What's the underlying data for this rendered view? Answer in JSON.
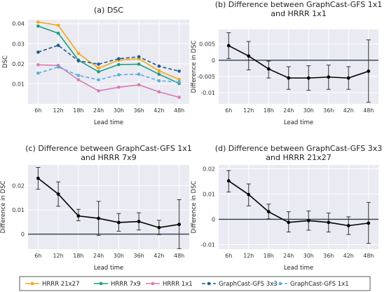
{
  "panels": [
    {
      "title_lines": [
        "(a) DSC"
      ],
      "xlabel": "Lead time",
      "ylabel": "DSC",
      "categories": [
        "6h",
        "12h",
        "18h",
        "24h",
        "30h",
        "36h",
        "42h",
        "48h"
      ],
      "ylim": [
        0.0,
        0.042
      ],
      "yticks": [
        0.01,
        0.02,
        0.03,
        0.04
      ],
      "ytick_labels": [
        "0.01",
        "0.02",
        "0.03",
        "0.04"
      ],
      "series": [
        {
          "key": "hrrr_21x27",
          "values": [
            0.0408,
            0.0392,
            0.0252,
            0.0178,
            0.0218,
            0.0225,
            0.0165,
            0.0122
          ]
        },
        {
          "key": "hrrr_7x9",
          "values": [
            0.0388,
            0.0352,
            0.0218,
            0.016,
            0.0196,
            0.0198,
            0.0148,
            0.0102
          ]
        },
        {
          "key": "hrrr_1x1",
          "values": [
            0.0195,
            0.0192,
            0.012,
            0.0065,
            0.0083,
            0.0095,
            0.006,
            0.0033
          ]
        },
        {
          "key": "graphcast_3x3",
          "values": [
            0.0258,
            0.0292,
            0.0215,
            0.0198,
            0.0225,
            0.0235,
            0.0188,
            0.0163
          ]
        },
        {
          "key": "graphcast_1x1",
          "values": [
            0.0153,
            0.0184,
            0.0142,
            0.012,
            0.0145,
            0.0148,
            0.0115,
            0.011
          ]
        }
      ]
    },
    {
      "title_lines": [
        "(b) Difference between GraphCast-GFS 1x1",
        "and HRRR 1x1"
      ],
      "xlabel": "Lead time",
      "ylabel": "Difference in DSC",
      "categories": [
        "6h",
        "12h",
        "18h",
        "24h",
        "30h",
        "36h",
        "42h",
        "48h"
      ],
      "ylim": [
        -0.0135,
        0.0095
      ],
      "yticks": [
        -0.01,
        -0.005,
        0.0,
        0.005
      ],
      "ytick_labels": [
        "-0.01",
        "-0.005",
        "0",
        "0.005"
      ],
      "zero_line": true,
      "values": [
        0.0045,
        0.0013,
        -0.0027,
        -0.0055,
        -0.0055,
        -0.0052,
        -0.0055,
        -0.0034
      ],
      "err_low": [
        0.0005,
        -0.003,
        -0.0055,
        -0.009,
        -0.0093,
        -0.009,
        -0.009,
        -0.013
      ],
      "err_high": [
        0.0085,
        0.0058,
        -0.0003,
        -0.002,
        -0.0017,
        -0.0015,
        -0.002,
        0.0063
      ]
    },
    {
      "title_lines": [
        "(c) Difference between GraphCast-GFS 1x1",
        "and HRRR 7x9"
      ],
      "xlabel": "Lead time",
      "ylabel": "Difference in DSC",
      "categories": [
        "6h",
        "12h",
        "18h",
        "24h",
        "30h",
        "36h",
        "42h",
        "48h"
      ],
      "ylim": [
        -0.0062,
        0.0285
      ],
      "yticks": [
        0.0,
        0.01,
        0.02
      ],
      "ytick_labels": [
        "0",
        "0.01",
        "0.02"
      ],
      "zero_line": true,
      "values": [
        0.023,
        0.0165,
        0.0075,
        0.0065,
        0.0048,
        0.0052,
        0.0027,
        0.004
      ],
      "err_low": [
        0.0185,
        0.0115,
        0.0055,
        -0.0005,
        0.0012,
        0.0017,
        -0.0002,
        -0.006
      ],
      "err_high": [
        0.0275,
        0.0215,
        0.0102,
        0.0135,
        0.0085,
        0.0088,
        0.0057,
        0.0142
      ]
    },
    {
      "title_lines": [
        "(d) Difference between GraphCast-GFS 3x3",
        "and HRRR 21x27"
      ],
      "xlabel": "Lead time",
      "ylabel": "Difference in DSC",
      "categories": [
        "6h",
        "12h",
        "18h",
        "24h",
        "30h",
        "36h",
        "42h",
        "48h"
      ],
      "ylim": [
        -0.0118,
        0.0215
      ],
      "yticks": [
        -0.01,
        0.0,
        0.01,
        0.02
      ],
      "ytick_labels": [
        "-0.01",
        "0",
        "0.01",
        "0.02"
      ],
      "zero_line": true,
      "values": [
        0.0152,
        0.0098,
        0.003,
        -0.0012,
        -0.0005,
        -0.0012,
        -0.0025,
        -0.0015
      ],
      "err_low": [
        0.0108,
        0.0053,
        0.0002,
        -0.005,
        -0.0043,
        -0.005,
        -0.006,
        -0.0095
      ],
      "err_high": [
        0.0193,
        0.014,
        0.006,
        0.003,
        0.0033,
        0.0025,
        0.001,
        0.0067
      ]
    }
  ],
  "legend": [
    {
      "key": "hrrr_21x27",
      "label": "HRRR 21x27",
      "color": "#f2a81d",
      "dash": "solid"
    },
    {
      "key": "hrrr_7x9",
      "label": "HRRR 7x9",
      "color": "#1a9e77",
      "dash": "solid"
    },
    {
      "key": "hrrr_1x1",
      "label": "HRRR 1x1",
      "color": "#d67bb1",
      "dash": "solid"
    },
    {
      "key": "graphcast_3x3",
      "label": "GraphCast-GFS 3x3",
      "color": "#1f5b8c",
      "dash": "dashed"
    },
    {
      "key": "graphcast_1x1",
      "label": "GraphCast-GFS 1x1",
      "color": "#5aade0",
      "dash": "dashed"
    }
  ],
  "colors": {
    "plot_bg": "#eaeaf2",
    "grid": "#ffffff",
    "zero_line": "#2d3e50",
    "diff_line": "#000000"
  },
  "chart_data": [
    {
      "type": "line",
      "title": "(a) DSC",
      "xlabel": "Lead time",
      "ylabel": "DSC",
      "categories": [
        "6h",
        "12h",
        "18h",
        "24h",
        "30h",
        "36h",
        "42h",
        "48h"
      ],
      "ylim": [
        0.0,
        0.042
      ],
      "series": [
        {
          "name": "HRRR 21x27",
          "values": [
            0.0408,
            0.0392,
            0.0252,
            0.0178,
            0.0218,
            0.0225,
            0.0165,
            0.0122
          ]
        },
        {
          "name": "HRRR 7x9",
          "values": [
            0.0388,
            0.0352,
            0.0218,
            0.016,
            0.0196,
            0.0198,
            0.0148,
            0.0102
          ]
        },
        {
          "name": "HRRR 1x1",
          "values": [
            0.0195,
            0.0192,
            0.012,
            0.0065,
            0.0083,
            0.0095,
            0.006,
            0.0033
          ]
        },
        {
          "name": "GraphCast-GFS 3x3",
          "values": [
            0.0258,
            0.0292,
            0.0215,
            0.0198,
            0.0225,
            0.0235,
            0.0188,
            0.0163
          ]
        },
        {
          "name": "GraphCast-GFS 1x1",
          "values": [
            0.0153,
            0.0184,
            0.0142,
            0.012,
            0.0145,
            0.0148,
            0.0115,
            0.011
          ]
        }
      ],
      "grid": true,
      "legend": "bottom"
    },
    {
      "type": "line",
      "title": "(b) Difference between GraphCast-GFS 1x1 and HRRR 1x1",
      "xlabel": "Lead time",
      "ylabel": "Difference in DSC",
      "categories": [
        "6h",
        "12h",
        "18h",
        "24h",
        "30h",
        "36h",
        "42h",
        "48h"
      ],
      "values": [
        0.0045,
        0.0013,
        -0.0027,
        -0.0055,
        -0.0055,
        -0.0052,
        -0.0055,
        -0.0034
      ],
      "error_low": [
        0.0005,
        -0.003,
        -0.0055,
        -0.009,
        -0.0093,
        -0.009,
        -0.009,
        -0.013
      ],
      "error_high": [
        0.0085,
        0.0058,
        -0.0003,
        -0.002,
        -0.0017,
        -0.0015,
        -0.002,
        0.0063
      ],
      "ylim": [
        -0.0135,
        0.0095
      ],
      "grid": true
    },
    {
      "type": "line",
      "title": "(c) Difference between GraphCast-GFS 1x1 and HRRR 7x9",
      "xlabel": "Lead time",
      "ylabel": "Difference in DSC",
      "categories": [
        "6h",
        "12h",
        "18h",
        "24h",
        "30h",
        "36h",
        "42h",
        "48h"
      ],
      "values": [
        0.023,
        0.0165,
        0.0075,
        0.0065,
        0.0048,
        0.0052,
        0.0027,
        0.004
      ],
      "error_low": [
        0.0185,
        0.0115,
        0.0055,
        -0.0005,
        0.0012,
        0.0017,
        -0.0002,
        -0.006
      ],
      "error_high": [
        0.0275,
        0.0215,
        0.0102,
        0.0135,
        0.0085,
        0.0088,
        0.0057,
        0.0142
      ],
      "ylim": [
        -0.0062,
        0.0285
      ],
      "grid": true
    },
    {
      "type": "line",
      "title": "(d) Difference between GraphCast-GFS 3x3 and HRRR 21x27",
      "xlabel": "Lead time",
      "ylabel": "Difference in DSC",
      "categories": [
        "6h",
        "12h",
        "18h",
        "24h",
        "30h",
        "36h",
        "42h",
        "48h"
      ],
      "values": [
        0.0152,
        0.0098,
        0.003,
        -0.0012,
        -0.0005,
        -0.0012,
        -0.0025,
        -0.0015
      ],
      "error_low": [
        0.0108,
        0.0053,
        0.0002,
        -0.005,
        -0.0043,
        -0.005,
        -0.006,
        -0.0095
      ],
      "error_high": [
        0.0193,
        0.014,
        0.006,
        0.003,
        0.0033,
        0.0025,
        0.001,
        0.0067
      ],
      "ylim": [
        -0.0118,
        0.0215
      ],
      "grid": true
    }
  ]
}
